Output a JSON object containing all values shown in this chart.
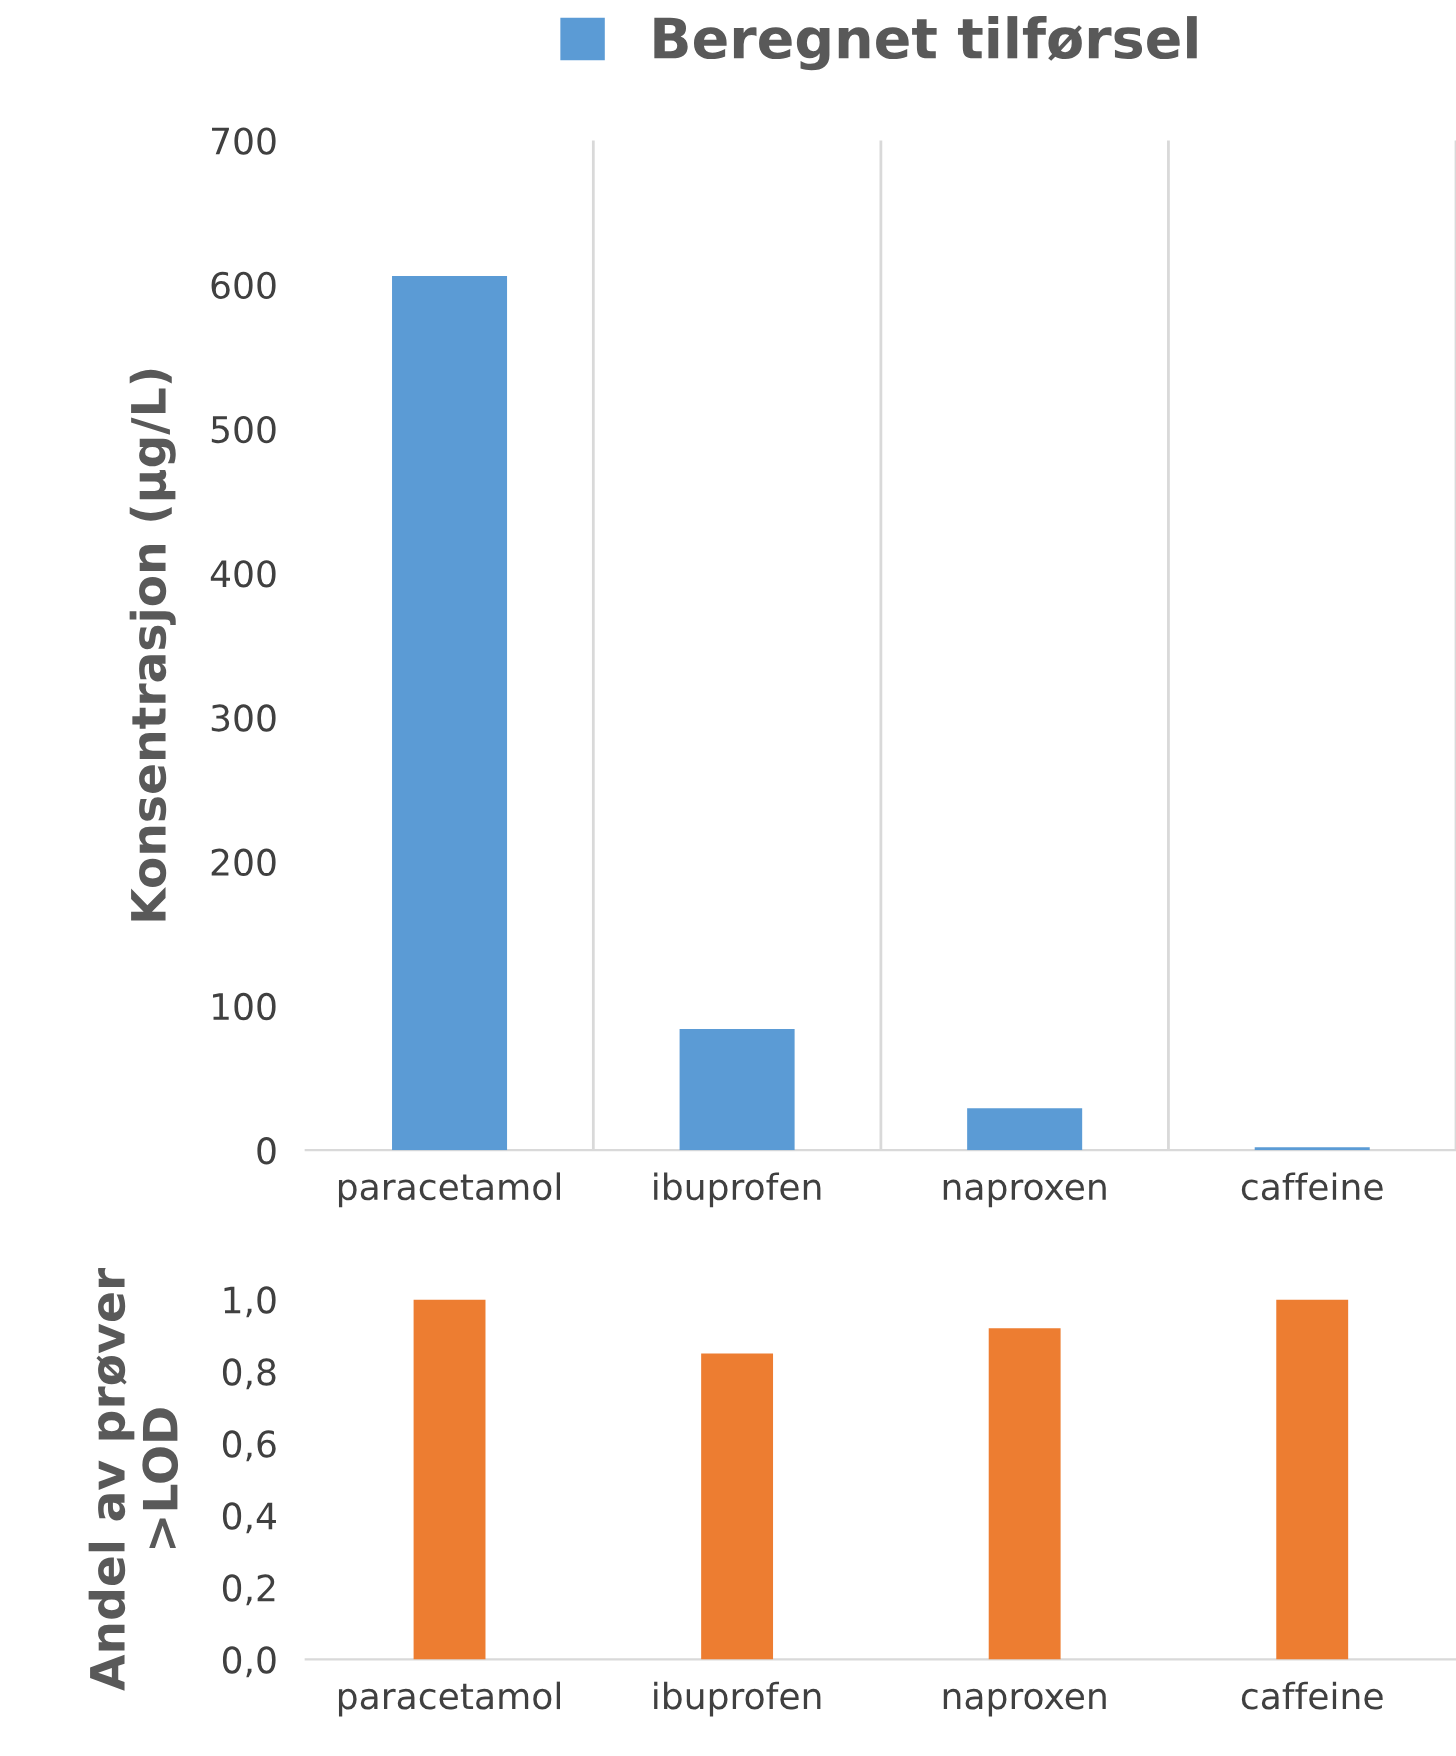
{
  "chart_data": [
    {
      "type": "bar",
      "ylabel": "Konsentrasjon (µg/L)",
      "categories": [
        "paracetamol",
        "ibuprofen",
        "naproxen",
        "caffeine"
      ],
      "series": [
        {
          "name": "Beregnet tilførsel",
          "color": "#5b9bd5",
          "values": [
            606,
            84,
            29,
            2
          ]
        }
      ],
      "ylim": [
        0,
        700
      ],
      "yticks": [
        0,
        100,
        200,
        300,
        400,
        500,
        600,
        700
      ],
      "grid": "x",
      "legend": "top"
    },
    {
      "type": "bar",
      "ylabel": "Andel av prøver\n>LOD",
      "categories": [
        "paracetamol",
        "ibuprofen",
        "naproxen",
        "caffeine"
      ],
      "series": [
        {
          "color": "#ed7d31",
          "values": [
            1.0,
            0.85,
            0.92,
            1.0
          ]
        }
      ],
      "ylim": [
        0,
        1
      ],
      "yticks": [
        {
          "value": 0,
          "label": "0,0"
        },
        {
          "value": 0.2,
          "label": "0,2"
        },
        {
          "value": 0.4,
          "label": "0,4"
        },
        {
          "value": 0.6,
          "label": "0,6"
        },
        {
          "value": 0.8,
          "label": "0,8"
        },
        {
          "value": 1,
          "label": "1,0"
        }
      ]
    }
  ]
}
